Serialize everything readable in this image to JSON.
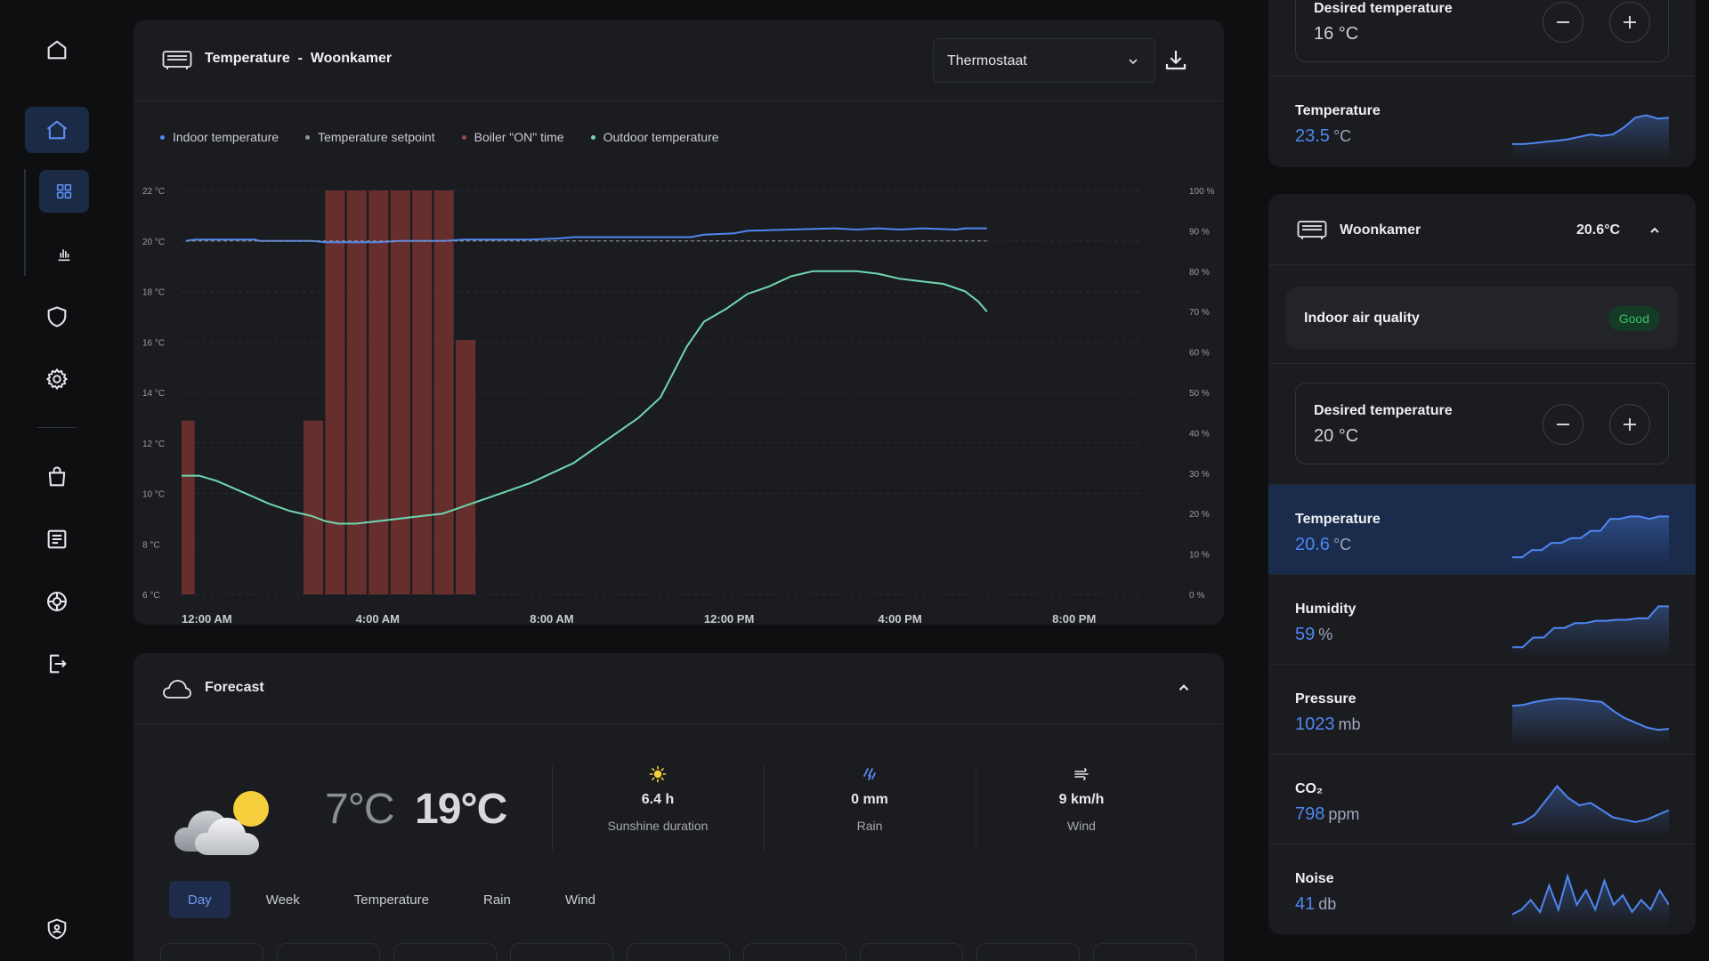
{
  "colors": {
    "accent": "#4f86f1",
    "indoor": "#4f86f1",
    "setpoint": "#8f949c",
    "boiler": "#6b2f2f",
    "outdoor": "#6fd8b0",
    "good": "#36c26d"
  },
  "sidebar": {
    "items": [
      {
        "name": "home-icon"
      },
      {
        "name": "house-icon",
        "active": true
      },
      {
        "name": "grid-icon",
        "active": true
      },
      {
        "name": "bar-chart-icon"
      },
      {
        "name": "shield-icon"
      },
      {
        "name": "gear-icon"
      },
      {
        "name": "shopping-bag-icon"
      },
      {
        "name": "document-icon"
      },
      {
        "name": "lifebuoy-icon"
      },
      {
        "name": "logout-icon"
      },
      {
        "name": "privacy-shield-icon"
      }
    ]
  },
  "chart_card": {
    "title": "Temperature",
    "title_sep": "-",
    "room": "Woonkamer",
    "select_value": "Thermostaat",
    "legend": [
      "Indoor temperature",
      "Temperature setpoint",
      "Boiler \"ON\" time",
      "Outdoor temperature"
    ]
  },
  "chart_data": {
    "type": "line",
    "x_tick_labels": [
      "12:00 AM",
      "4:00 AM",
      "8:00 AM",
      "12:00 PM",
      "4:00 PM",
      "8:00 PM"
    ],
    "x_range_hours": [
      0,
      22
    ],
    "y_left": {
      "ticks": [
        "22 °C",
        "20 °C",
        "18 °C",
        "16 °C",
        "14 °C",
        "12 °C",
        "10 °C",
        "8 °C",
        "6 °C"
      ],
      "range": [
        6,
        22
      ],
      "unit": "°C"
    },
    "y_right": {
      "ticks": [
        "100 %",
        "90 %",
        "80 %",
        "70 %",
        "60 %",
        "50 %",
        "40 %",
        "30 %",
        "20 %",
        "10 %",
        "0 %"
      ],
      "range": [
        0,
        100
      ],
      "unit": "%"
    },
    "grid": true,
    "series": [
      {
        "name": "Indoor temperature",
        "axis": "left",
        "kind": "line",
        "points": [
          [
            0.1,
            20.0
          ],
          [
            0.3,
            20.05
          ],
          [
            1,
            20.05
          ],
          [
            1.7,
            20.05
          ],
          [
            1.8,
            20.0
          ],
          [
            2.5,
            20.0
          ],
          [
            3,
            20.0
          ],
          [
            3.3,
            19.95
          ],
          [
            4,
            19.95
          ],
          [
            4.5,
            19.95
          ],
          [
            5,
            20.0
          ],
          [
            6,
            20.0
          ],
          [
            6.5,
            20.05
          ],
          [
            8,
            20.05
          ],
          [
            8.7,
            20.1
          ],
          [
            9,
            20.15
          ],
          [
            10,
            20.15
          ],
          [
            11.7,
            20.15
          ],
          [
            12,
            20.25
          ],
          [
            12.7,
            20.3
          ],
          [
            13,
            20.4
          ],
          [
            14,
            20.45
          ],
          [
            15,
            20.5
          ],
          [
            15.5,
            20.45
          ],
          [
            16,
            20.5
          ],
          [
            16.5,
            20.45
          ],
          [
            17,
            20.5
          ],
          [
            17.8,
            20.45
          ],
          [
            18,
            20.5
          ],
          [
            18.5,
            20.5
          ]
        ]
      },
      {
        "name": "Temperature setpoint",
        "axis": "left",
        "kind": "dashed",
        "points": [
          [
            0.1,
            20.0
          ],
          [
            18.5,
            20.0
          ]
        ]
      },
      {
        "name": "Boiler \"ON\" time",
        "axis": "right",
        "kind": "bar",
        "bars": [
          [
            0.0,
            0.3,
            43
          ],
          [
            2.8,
            3.25,
            43
          ],
          [
            3.3,
            3.75,
            100
          ],
          [
            3.8,
            4.25,
            100
          ],
          [
            4.3,
            4.75,
            100
          ],
          [
            4.8,
            5.25,
            100
          ],
          [
            5.3,
            5.75,
            100
          ],
          [
            5.8,
            6.25,
            100
          ],
          [
            6.3,
            6.75,
            63
          ]
        ]
      },
      {
        "name": "Outdoor temperature",
        "axis": "left",
        "kind": "line",
        "points": [
          [
            0,
            10.7
          ],
          [
            0.4,
            10.7
          ],
          [
            0.8,
            10.5
          ],
          [
            1.2,
            10.2
          ],
          [
            1.6,
            9.9
          ],
          [
            2,
            9.6
          ],
          [
            2.5,
            9.3
          ],
          [
            3,
            9.1
          ],
          [
            3.3,
            8.9
          ],
          [
            3.6,
            8.8
          ],
          [
            4,
            8.8
          ],
          [
            4.5,
            8.9
          ],
          [
            5,
            9.0
          ],
          [
            5.5,
            9.1
          ],
          [
            6,
            9.2
          ],
          [
            6.5,
            9.5
          ],
          [
            7,
            9.8
          ],
          [
            7.5,
            10.1
          ],
          [
            8,
            10.4
          ],
          [
            8.5,
            10.8
          ],
          [
            9,
            11.2
          ],
          [
            9.5,
            11.8
          ],
          [
            10,
            12.4
          ],
          [
            10.5,
            13.0
          ],
          [
            11,
            13.8
          ],
          [
            11.3,
            14.8
          ],
          [
            11.6,
            15.8
          ],
          [
            12,
            16.8
          ],
          [
            12.5,
            17.3
          ],
          [
            13,
            17.9
          ],
          [
            13.5,
            18.2
          ],
          [
            14,
            18.6
          ],
          [
            14.5,
            18.8
          ],
          [
            15,
            18.8
          ],
          [
            15.5,
            18.8
          ],
          [
            16,
            18.7
          ],
          [
            16.5,
            18.5
          ],
          [
            17,
            18.4
          ],
          [
            17.5,
            18.3
          ],
          [
            18,
            18.0
          ],
          [
            18.3,
            17.6
          ],
          [
            18.5,
            17.2
          ]
        ]
      }
    ]
  },
  "forecast": {
    "title": "Forecast",
    "temp_low": "7°C",
    "temp_high": "19°C",
    "stats": [
      {
        "icon": "sun-icon",
        "value": "6.4 h",
        "label": "Sunshine duration"
      },
      {
        "icon": "rain-icon",
        "value": "0 mm",
        "label": "Rain"
      },
      {
        "icon": "wind-icon",
        "value": "9 km/h",
        "label": "Wind"
      }
    ],
    "tabs": [
      {
        "label": "Day",
        "active": true
      },
      {
        "label": "Week"
      },
      {
        "label": "Temperature"
      },
      {
        "label": "Rain"
      },
      {
        "label": "Wind"
      }
    ]
  },
  "right_top": {
    "desired_label": "Desired temperature",
    "desired_value": "16 °C",
    "metric": {
      "label": "Temperature",
      "value": "23.5",
      "unit": "°C",
      "spark": [
        0.15,
        0.15,
        0.17,
        0.2,
        0.22,
        0.25,
        0.3,
        0.35,
        0.32,
        0.35,
        0.5,
        0.7,
        0.75,
        0.68,
        0.7
      ]
    }
  },
  "room": {
    "name": "Woonkamer",
    "temp": "20.6°C",
    "iaq_label": "Indoor air quality",
    "iaq_status": "Good",
    "desired_label": "Desired temperature",
    "desired_value": "20 °C",
    "metrics": [
      {
        "label": "Temperature",
        "value": "20.6",
        "unit": "°C",
        "selected": true,
        "spark": [
          0.05,
          0.05,
          0.2,
          0.2,
          0.35,
          0.35,
          0.45,
          0.45,
          0.6,
          0.6,
          0.85,
          0.85,
          0.9,
          0.9,
          0.85,
          0.9,
          0.9
        ]
      },
      {
        "label": "Humidity",
        "value": "59",
        "unit": "%",
        "spark": [
          0.05,
          0.05,
          0.25,
          0.25,
          0.45,
          0.45,
          0.55,
          0.55,
          0.6,
          0.6,
          0.62,
          0.62,
          0.65,
          0.65,
          0.9,
          0.9
        ]
      },
      {
        "label": "Pressure",
        "value": "1023",
        "unit": "mb",
        "spark": [
          0.7,
          0.72,
          0.78,
          0.82,
          0.85,
          0.85,
          0.83,
          0.8,
          0.78,
          0.6,
          0.45,
          0.35,
          0.25,
          0.2,
          0.22
        ]
      },
      {
        "label": "CO₂",
        "value": "798",
        "unit": "ppm",
        "spark": [
          0.1,
          0.15,
          0.3,
          0.6,
          0.9,
          0.65,
          0.5,
          0.55,
          0.4,
          0.25,
          0.2,
          0.15,
          0.2,
          0.3,
          0.4
        ]
      },
      {
        "label": "Noise",
        "value": "41",
        "unit": "db",
        "spark": [
          0.1,
          0.2,
          0.4,
          0.15,
          0.7,
          0.2,
          0.9,
          0.3,
          0.6,
          0.2,
          0.8,
          0.3,
          0.5,
          0.15,
          0.4,
          0.2,
          0.6,
          0.3
        ]
      }
    ]
  }
}
